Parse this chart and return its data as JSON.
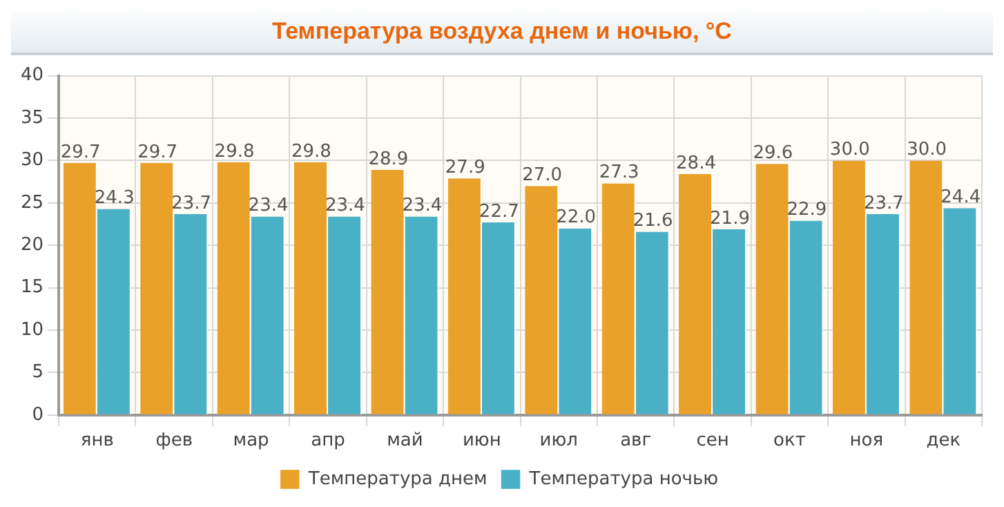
{
  "chart_data": {
    "type": "bar",
    "title": "Температура воздуха днем и ночью, °C",
    "categories": [
      "янв",
      "фев",
      "мар",
      "апр",
      "май",
      "июн",
      "июл",
      "авг",
      "сен",
      "окт",
      "ноя",
      "дек"
    ],
    "series": [
      {
        "name": "Температура днем",
        "color": "#e9a12a",
        "values": [
          29.7,
          29.7,
          29.8,
          29.8,
          28.9,
          27.9,
          27.0,
          27.3,
          28.4,
          29.6,
          30.0,
          30.0
        ],
        "value_labels": [
          "29.7",
          "29.7",
          "29.8",
          "29.8",
          "28.9",
          "27.9",
          "27.0",
          "27.3",
          "28.4",
          "29.6",
          "30.0",
          "30.0"
        ]
      },
      {
        "name": "Температура ночью",
        "color": "#4ab0c6",
        "values": [
          24.3,
          23.7,
          23.4,
          23.4,
          23.4,
          22.7,
          22.0,
          21.6,
          21.9,
          22.9,
          23.7,
          24.4
        ],
        "value_labels": [
          "24.3",
          "23.7",
          "23.4",
          "23.4",
          "23.4",
          "22.7",
          "22.0",
          "21.6",
          "21.9",
          "22.9",
          "23.7",
          "24.4"
        ]
      }
    ],
    "ylim": [
      0,
      40
    ],
    "yticks": [
      0,
      5,
      10,
      15,
      20,
      25,
      30,
      35,
      40
    ],
    "grid": true,
    "legend": "bottom"
  }
}
